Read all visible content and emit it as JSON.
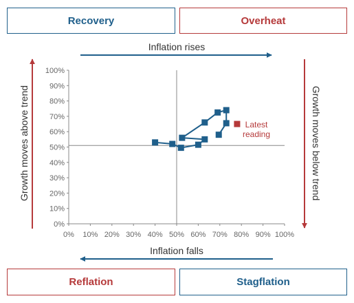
{
  "quadrants": {
    "top_left": "Recovery",
    "top_right": "Overheat",
    "bottom_left": "Reflation",
    "bottom_right": "Stagflation"
  },
  "arrows": {
    "top": "Inflation rises",
    "bottom": "Inflation falls",
    "left": "Growth moves above trend",
    "right": "Growth moves below trend"
  },
  "colors": {
    "blue": "#1f5f8b",
    "red": "#b5393a",
    "axis": "#888888",
    "text": "#333333"
  },
  "chart_data": {
    "type": "scatter",
    "x_ticks": [
      "0%",
      "10%",
      "20%",
      "30%",
      "40%",
      "50%",
      "60%",
      "70%",
      "80%",
      "90%",
      "100%"
    ],
    "y_ticks": [
      "0%",
      "10%",
      "20%",
      "30%",
      "40%",
      "50%",
      "60%",
      "70%",
      "80%",
      "90%",
      "100%"
    ],
    "xlim": [
      0,
      100
    ],
    "ylim": [
      0,
      100
    ],
    "crosshair": {
      "x": 50,
      "y": 51
    },
    "grid": false,
    "series": [
      {
        "points": [
          [
            40,
            53
          ],
          [
            48,
            52
          ],
          [
            52,
            49.5
          ],
          [
            60,
            51.5
          ],
          [
            63,
            55
          ],
          [
            52.5,
            56
          ],
          [
            63,
            66
          ],
          [
            69,
            72.5
          ],
          [
            73,
            74
          ],
          [
            73,
            65.5
          ],
          [
            69.5,
            58
          ]
        ],
        "color": "#1f5f8b"
      }
    ],
    "latest": {
      "point": [
        78,
        65
      ],
      "label_lines": [
        "Latest",
        "reading"
      ],
      "color": "#b5393a"
    }
  }
}
